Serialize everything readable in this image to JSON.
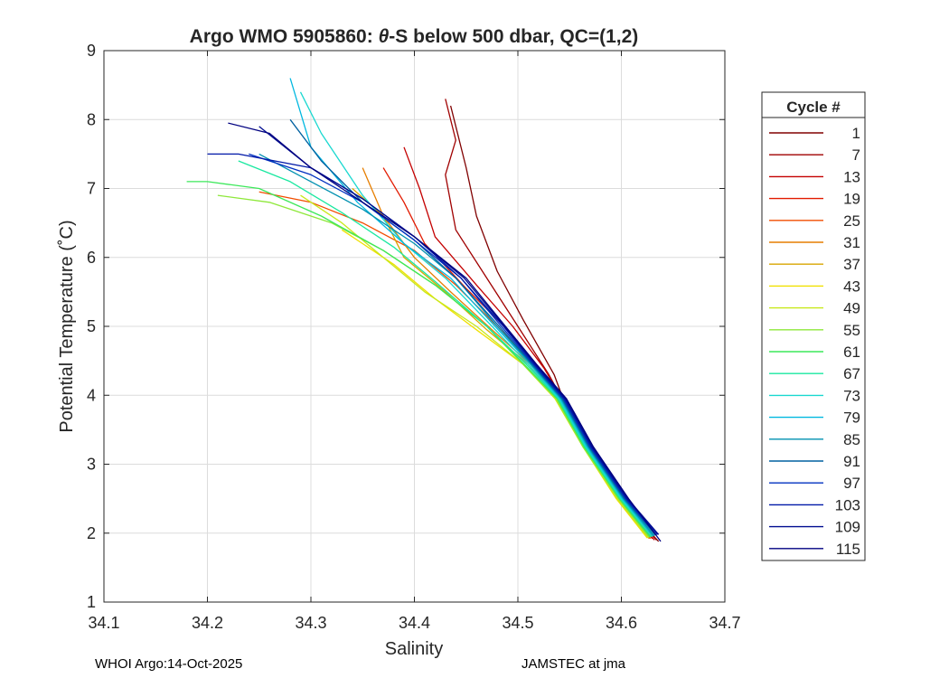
{
  "chart_data": {
    "type": "line",
    "title_prefix": "Argo WMO 5905860: ",
    "title_theta": "θ",
    "title_suffix": "-S below 500 dbar,  QC=(1,2)",
    "xlabel": "Salinity",
    "ylabel": "Potential Temperature (˚C)",
    "xlim": [
      34.1,
      34.7
    ],
    "ylim": [
      1,
      9
    ],
    "xticks": [
      34.1,
      34.2,
      34.3,
      34.4,
      34.5,
      34.6,
      34.7
    ],
    "xtick_labels": [
      "34.1",
      "34.2",
      "34.3",
      "34.4",
      "34.5",
      "34.6",
      "34.7"
    ],
    "yticks": [
      1,
      2,
      3,
      4,
      5,
      6,
      7,
      8,
      9
    ],
    "ytick_labels": [
      "1",
      "2",
      "3",
      "4",
      "5",
      "6",
      "7",
      "8",
      "9"
    ],
    "grid": true,
    "legend_title": "Cycle #",
    "legend_position": "right-outside",
    "legend": [
      {
        "label": "1",
        "color": "#800000"
      },
      {
        "label": "7",
        "color": "#A00000"
      },
      {
        "label": "13",
        "color": "#C40000"
      },
      {
        "label": "19",
        "color": "#E21A00"
      },
      {
        "label": "25",
        "color": "#F24D00"
      },
      {
        "label": "31",
        "color": "#E67E00"
      },
      {
        "label": "37",
        "color": "#D8A600"
      },
      {
        "label": "43",
        "color": "#F0E000"
      },
      {
        "label": "49",
        "color": "#C8E81A"
      },
      {
        "label": "55",
        "color": "#8EE83A"
      },
      {
        "label": "61",
        "color": "#3CE85A"
      },
      {
        "label": "67",
        "color": "#1AE8A0"
      },
      {
        "label": "73",
        "color": "#1AD8D0"
      },
      {
        "label": "79",
        "color": "#00B8E0"
      },
      {
        "label": "85",
        "color": "#0090B0"
      },
      {
        "label": "91",
        "color": "#0060A0"
      },
      {
        "label": "97",
        "color": "#0030C0"
      },
      {
        "label": "103",
        "color": "#0018A8"
      },
      {
        "label": "109",
        "color": "#000C90"
      },
      {
        "label": "115",
        "color": "#000080"
      }
    ],
    "series": [
      {
        "name": "1",
        "color": "#800000",
        "x": [
          34.636,
          34.61,
          34.575,
          34.55,
          34.535,
          34.505,
          34.48,
          34.46,
          34.45,
          34.435
        ],
        "y": [
          1.88,
          2.3,
          3.0,
          3.7,
          4.3,
          5.1,
          5.8,
          6.6,
          7.3,
          8.2
        ]
      },
      {
        "name": "7",
        "color": "#A00000",
        "x": [
          34.634,
          34.605,
          34.572,
          34.548,
          34.53,
          34.5,
          34.47,
          34.44,
          34.43,
          34.44,
          34.43
        ],
        "y": [
          1.9,
          2.4,
          3.1,
          3.8,
          4.3,
          5.0,
          5.7,
          6.4,
          7.2,
          7.7,
          8.3
        ]
      },
      {
        "name": "13",
        "color": "#C40000",
        "x": [
          34.632,
          34.6,
          34.57,
          34.545,
          34.525,
          34.495,
          34.46,
          34.42,
          34.405,
          34.39
        ],
        "y": [
          1.9,
          2.5,
          3.2,
          3.9,
          4.4,
          5.0,
          5.6,
          6.3,
          7.0,
          7.6
        ]
      },
      {
        "name": "19",
        "color": "#E21A00",
        "x": [
          34.63,
          34.6,
          34.568,
          34.544,
          34.52,
          34.49,
          34.45,
          34.41,
          34.39,
          34.37
        ],
        "y": [
          1.92,
          2.45,
          3.2,
          3.9,
          4.4,
          4.95,
          5.55,
          6.2,
          6.8,
          7.3
        ]
      },
      {
        "name": "25",
        "color": "#F24D00",
        "x": [
          34.628,
          34.598,
          34.566,
          34.542,
          34.515,
          34.48,
          34.44,
          34.4,
          34.35,
          34.3,
          34.25
        ],
        "y": [
          1.92,
          2.5,
          3.25,
          3.95,
          4.45,
          5.0,
          5.6,
          6.1,
          6.5,
          6.8,
          6.95
        ]
      },
      {
        "name": "31",
        "color": "#E67E00",
        "x": [
          34.627,
          34.597,
          34.565,
          34.54,
          34.512,
          34.475,
          34.435,
          34.4,
          34.37,
          34.35
        ],
        "y": [
          1.92,
          2.5,
          3.25,
          3.95,
          4.45,
          4.95,
          5.5,
          6.0,
          6.6,
          7.3
        ]
      },
      {
        "name": "37",
        "color": "#D8A600",
        "x": [
          34.626,
          34.596,
          34.564,
          34.538,
          34.51,
          34.47,
          34.43,
          34.39,
          34.37,
          34.34
        ],
        "y": [
          1.93,
          2.5,
          3.25,
          3.95,
          4.45,
          4.95,
          5.5,
          6.0,
          6.6,
          7.0
        ]
      },
      {
        "name": "43",
        "color": "#F0E000",
        "x": [
          34.625,
          34.595,
          34.563,
          34.536,
          34.505,
          34.46,
          34.42,
          34.38,
          34.35,
          34.33
        ],
        "y": [
          1.93,
          2.5,
          3.25,
          3.95,
          4.45,
          4.95,
          5.4,
          5.9,
          6.2,
          6.4
        ]
      },
      {
        "name": "49",
        "color": "#C8E81A",
        "x": [
          34.626,
          34.596,
          34.563,
          34.536,
          34.505,
          34.46,
          34.41,
          34.37,
          34.33,
          34.29
        ],
        "y": [
          1.93,
          2.5,
          3.25,
          3.95,
          4.45,
          5.0,
          5.5,
          6.0,
          6.5,
          6.9
        ]
      },
      {
        "name": "55",
        "color": "#8EE83A",
        "x": [
          34.627,
          34.597,
          34.563,
          34.537,
          34.505,
          34.47,
          34.42,
          34.37,
          34.32,
          34.26,
          34.21
        ],
        "y": [
          1.94,
          2.5,
          3.25,
          3.95,
          4.45,
          5.0,
          5.6,
          6.1,
          6.5,
          6.8,
          6.9
        ]
      },
      {
        "name": "61",
        "color": "#3CE85A",
        "x": [
          34.628,
          34.598,
          34.564,
          34.538,
          34.506,
          34.47,
          34.42,
          34.37,
          34.31,
          34.25,
          34.2,
          34.18
        ],
        "y": [
          1.94,
          2.5,
          3.25,
          3.95,
          4.45,
          5.0,
          5.6,
          6.1,
          6.6,
          7.0,
          7.1,
          7.1
        ]
      },
      {
        "name": "67",
        "color": "#1AE8A0",
        "x": [
          34.629,
          34.599,
          34.565,
          34.539,
          34.508,
          34.47,
          34.42,
          34.38,
          34.33,
          34.28,
          34.23
        ],
        "y": [
          1.95,
          2.5,
          3.25,
          3.95,
          4.45,
          5.0,
          5.65,
          6.15,
          6.65,
          7.1,
          7.4
        ]
      },
      {
        "name": "73",
        "color": "#1AD8D0",
        "x": [
          34.63,
          34.6,
          34.566,
          34.54,
          34.51,
          34.475,
          34.43,
          34.39,
          34.35,
          34.31,
          34.29
        ],
        "y": [
          1.95,
          2.5,
          3.25,
          3.95,
          4.45,
          5.0,
          5.7,
          6.2,
          6.9,
          7.8,
          8.4
        ]
      },
      {
        "name": "79",
        "color": "#00B8E0",
        "x": [
          34.631,
          34.601,
          34.567,
          34.541,
          34.512,
          34.478,
          34.435,
          34.39,
          34.345,
          34.3,
          34.28
        ],
        "y": [
          1.96,
          2.5,
          3.25,
          3.95,
          4.45,
          5.0,
          5.7,
          6.2,
          6.8,
          7.6,
          8.6
        ]
      },
      {
        "name": "85",
        "color": "#0090B0",
        "x": [
          34.632,
          34.602,
          34.568,
          34.542,
          34.513,
          34.48,
          34.44,
          34.4,
          34.35,
          34.3,
          34.25
        ],
        "y": [
          1.96,
          2.5,
          3.25,
          3.95,
          4.45,
          5.0,
          5.7,
          6.2,
          6.7,
          7.1,
          7.5
        ]
      },
      {
        "name": "91",
        "color": "#0060A0",
        "x": [
          34.633,
          34.603,
          34.569,
          34.543,
          34.514,
          34.482,
          34.44,
          34.4,
          34.35,
          34.31,
          34.28
        ],
        "y": [
          1.97,
          2.5,
          3.25,
          3.95,
          4.45,
          5.0,
          5.7,
          6.25,
          6.8,
          7.4,
          8.0
        ]
      },
      {
        "name": "97",
        "color": "#0030C0",
        "x": [
          34.634,
          34.604,
          34.57,
          34.544,
          34.515,
          34.484,
          34.445,
          34.4,
          34.35,
          34.3,
          34.24
        ],
        "y": [
          1.97,
          2.5,
          3.25,
          3.95,
          4.45,
          5.0,
          5.7,
          6.25,
          6.8,
          7.2,
          7.5
        ]
      },
      {
        "name": "103",
        "color": "#0018A8",
        "x": [
          34.635,
          34.605,
          34.571,
          34.545,
          34.516,
          34.486,
          34.445,
          34.4,
          34.35,
          34.3,
          34.23,
          34.2
        ],
        "y": [
          1.98,
          2.5,
          3.25,
          3.95,
          4.45,
          5.0,
          5.7,
          6.3,
          6.85,
          7.3,
          7.5,
          7.5
        ]
      },
      {
        "name": "109",
        "color": "#000C90",
        "x": [
          34.636,
          34.606,
          34.572,
          34.546,
          34.517,
          34.487,
          34.448,
          34.4,
          34.35,
          34.3,
          34.25
        ],
        "y": [
          1.98,
          2.5,
          3.25,
          3.95,
          4.45,
          5.0,
          5.7,
          6.3,
          6.85,
          7.3,
          7.9
        ]
      },
      {
        "name": "115",
        "color": "#000080",
        "x": [
          34.638,
          34.607,
          34.573,
          34.547,
          34.518,
          34.488,
          34.45,
          34.4,
          34.35,
          34.3,
          34.26,
          34.22
        ],
        "y": [
          1.88,
          2.5,
          3.25,
          3.95,
          4.45,
          5.0,
          5.7,
          6.3,
          6.8,
          7.3,
          7.8,
          7.95
        ]
      }
    ]
  },
  "footer": {
    "left": "WHOI Argo:14-Oct-2025",
    "right": "JAMSTEC at jma"
  }
}
